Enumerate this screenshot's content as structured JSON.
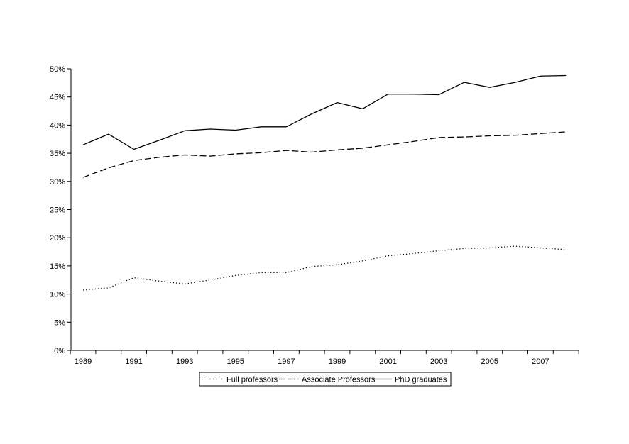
{
  "chart_data": {
    "type": "line",
    "title": "",
    "xlabel": "",
    "ylabel": "",
    "x": [
      1989,
      1990,
      1991,
      1992,
      1993,
      1994,
      1995,
      1996,
      1997,
      1998,
      1999,
      2000,
      2001,
      2002,
      2003,
      2004,
      2005,
      2006,
      2007,
      2008
    ],
    "x_tick_labels": [
      "1989",
      "1991",
      "1993",
      "1995",
      "1997",
      "1999",
      "2001",
      "2003",
      "2005",
      "2007"
    ],
    "y_tick_labels": [
      "0%",
      "5%",
      "10%",
      "15%",
      "20%",
      "25%",
      "30%",
      "35%",
      "40%",
      "45%",
      "50%"
    ],
    "ylim": [
      0,
      50
    ],
    "y_unit": "%",
    "grid": false,
    "legend_position": "bottom",
    "series": [
      {
        "name": "Full professors",
        "line_style": "dotted",
        "color": "#000000",
        "values": [
          10.7,
          11.1,
          12.9,
          12.3,
          11.8,
          12.5,
          13.3,
          13.8,
          13.8,
          14.9,
          15.2,
          15.9,
          16.8,
          17.2,
          17.7,
          18.1,
          18.2,
          18.5,
          18.2,
          17.9
        ]
      },
      {
        "name": "Associate Professors",
        "line_style": "dashed",
        "color": "#000000",
        "values": [
          30.7,
          32.4,
          33.7,
          34.3,
          34.7,
          34.5,
          34.9,
          35.1,
          35.5,
          35.2,
          35.6,
          35.9,
          36.5,
          37.1,
          37.8,
          37.9,
          38.1,
          38.2,
          38.5,
          38.8
        ]
      },
      {
        "name": "PhD graduates",
        "line_style": "solid",
        "color": "#000000",
        "values": [
          36.5,
          38.4,
          35.7,
          37.3,
          39.0,
          39.3,
          39.1,
          39.7,
          39.7,
          42.0,
          44.0,
          42.9,
          45.5,
          45.5,
          45.4,
          47.6,
          46.7,
          47.6,
          48.7,
          48.8
        ]
      }
    ]
  }
}
